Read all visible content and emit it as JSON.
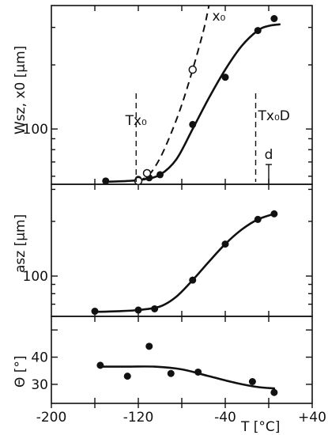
{
  "chart_data": [
    {
      "type": "line",
      "ylabel": "Wsz, x0 [μm]",
      "ylim_log": [
        55,
        380
      ],
      "ytick_labels": [
        {
          "value": 100,
          "label": "100"
        }
      ],
      "series": [
        {
          "name": "Wsz",
          "style": "filled",
          "x": [
            -150,
            -120,
            -110,
            -100,
            -70,
            -40,
            -10,
            5
          ],
          "y": [
            57,
            58,
            59,
            61,
            105,
            175,
            290,
            330
          ]
        },
        {
          "name": "x0",
          "style": "open",
          "x": [
            -120,
            -112,
            -70
          ],
          "y": [
            57,
            62,
            190
          ]
        }
      ],
      "fit_Wsz": {
        "x": [
          -150,
          -130,
          -115,
          -100,
          -85,
          -70,
          -55,
          -40,
          -25,
          -10,
          0,
          10
        ],
        "y": [
          56.5,
          57,
          58,
          61,
          72,
          100,
          140,
          190,
          245,
          290,
          305,
          310
        ]
      },
      "fit_x0": {
        "x": [
          -120,
          -110,
          -100,
          -90,
          -80,
          -70,
          -60,
          -55
        ],
        "y": [
          57,
          61,
          73,
          95,
          130,
          190,
          290,
          380
        ]
      },
      "annotations": [
        {
          "id": "Tx0",
          "text": "Tx₀",
          "x": -122
        },
        {
          "id": "Tx0D",
          "text": "Tx₀D",
          "x": -12
        },
        {
          "id": "d",
          "text": "d",
          "x": 0
        },
        {
          "id": "x0-curve",
          "text": "x₀"
        }
      ]
    },
    {
      "type": "line",
      "ylabel": "asz [μm]",
      "ylim_log": [
        60,
        320
      ],
      "ytick_labels": [
        {
          "value": 100,
          "label": "100"
        }
      ],
      "series": [
        {
          "name": "asz",
          "style": "filled",
          "x": [
            -160,
            -120,
            -105,
            -70,
            -40,
            -10,
            5
          ],
          "y": [
            64,
            65,
            66,
            95,
            150,
            205,
            220
          ]
        }
      ],
      "fit": {
        "x": [
          -160,
          -140,
          -120,
          -100,
          -85,
          -70,
          -55,
          -40,
          -25,
          -10,
          5
        ],
        "y": [
          63.5,
          64,
          65,
          68,
          77,
          95,
          120,
          150,
          180,
          205,
          220
        ]
      }
    },
    {
      "type": "line",
      "ylabel": "Θ [°]",
      "ylim": [
        23,
        55
      ],
      "yticks": [
        30,
        40
      ],
      "series": [
        {
          "name": "Θ",
          "style": "filled",
          "x": [
            -155,
            -130,
            -110,
            -90,
            -65,
            -15,
            5
          ],
          "y": [
            37,
            33,
            44,
            34,
            34.5,
            31,
            27
          ]
        }
      ],
      "fit": {
        "x": [
          -155,
          -130,
          -105,
          -80,
          -55,
          -30,
          -10,
          5
        ],
        "y": [
          36.5,
          36.5,
          36.5,
          35.5,
          33,
          30.5,
          29,
          28.5
        ]
      },
      "xlim": [
        -200,
        40
      ],
      "xticks": [
        -200,
        -120,
        -40,
        40
      ],
      "xtick_labels": [
        "-200",
        "-120",
        "-40",
        "+40"
      ],
      "xlabel": "T [°C]"
    }
  ]
}
